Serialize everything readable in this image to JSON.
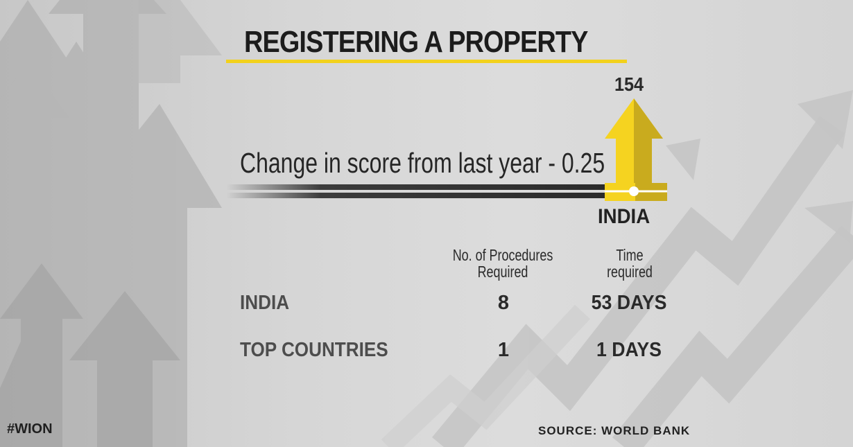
{
  "header": {
    "title": "REGISTERING A PROPERTY"
  },
  "indicator": {
    "rank": "154",
    "change_text": "Change in score from last year - 0.25",
    "country": "INDIA",
    "accent_color": "#f5d320",
    "accent_shadow": "#c9ab1e",
    "up_icon": "up-arrow-icon"
  },
  "table": {
    "columns": [
      "No. of Procedures\nRequired",
      "Time\nrequired"
    ],
    "rows": [
      {
        "label": "INDIA",
        "procedures": "8",
        "time": "53 DAYS"
      },
      {
        "label": "TOP COUNTRIES",
        "procedures": "1",
        "time": "1 DAYS"
      }
    ]
  },
  "footer": {
    "hashtag": "#WION",
    "source": "SOURCE: WORLD BANK"
  }
}
